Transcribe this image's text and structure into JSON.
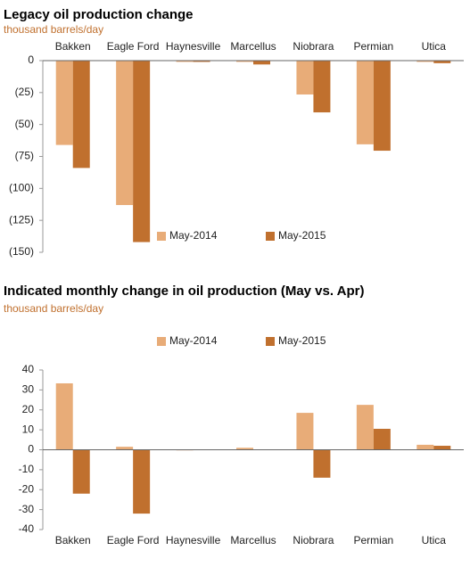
{
  "chart_data": [
    {
      "type": "bar",
      "title": "Legacy oil production change",
      "subtitle": "thousand barrels/day",
      "categories": [
        "Bakken",
        "Eagle Ford",
        "Haynesville",
        "Marcellus",
        "Niobrara",
        "Permian",
        "Utica"
      ],
      "category_position": "top",
      "series": [
        {
          "name": "May-2014",
          "color": "#e8ac78",
          "values": [
            -66,
            -113,
            -1,
            -1,
            -26.5,
            -65.5,
            -1
          ]
        },
        {
          "name": "May-2015",
          "color": "#c0702e",
          "values": [
            -84,
            -142,
            -1,
            -3,
            -40.5,
            -70.5,
            -2
          ]
        }
      ],
      "ylim": [
        -150,
        0
      ],
      "yticks": [
        {
          "value": -150,
          "label": "(150)"
        },
        {
          "value": -125,
          "label": "(125)"
        },
        {
          "value": -100,
          "label": "(100)"
        },
        {
          "value": -75,
          "label": "(75)"
        },
        {
          "value": -50,
          "label": "(50)"
        },
        {
          "value": -25,
          "label": "(25)"
        },
        0
      ],
      "legend": "bottom-center"
    },
    {
      "type": "bar",
      "title": "Indicated monthly change in oil production (May vs. Apr)",
      "subtitle": "thousand barrels/day",
      "categories": [
        "Bakken",
        "Eagle Ford",
        "Haynesville",
        "Marcellus",
        "Niobrara",
        "Permian",
        "Utica"
      ],
      "category_position": "bottom",
      "series": [
        {
          "name": "May-2014",
          "color": "#e8ac78",
          "values": [
            33.3,
            1.5,
            -0.3,
            1,
            18.5,
            22.5,
            2.5
          ]
        },
        {
          "name": "May-2015",
          "color": "#c0702e",
          "values": [
            -22,
            -32,
            0,
            0,
            -14,
            10.5,
            2
          ]
        }
      ],
      "ylim": [
        -40,
        40
      ],
      "yticks": [
        -40,
        -30,
        -20,
        -10,
        0,
        10,
        20,
        30,
        40
      ],
      "legend": "top-center"
    }
  ]
}
